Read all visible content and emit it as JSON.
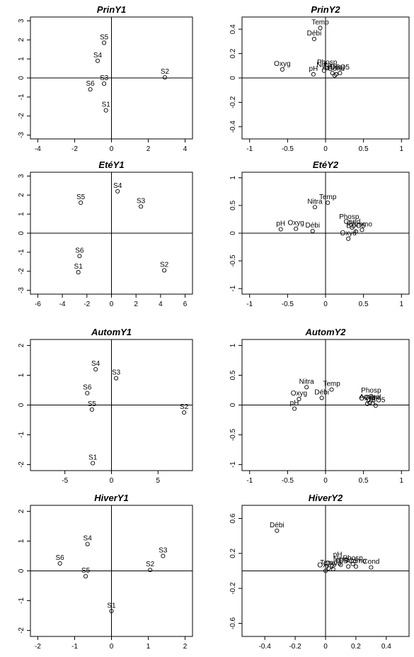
{
  "chart_data": [
    {
      "type": "scatter",
      "title": "PrinY1",
      "xlim": [
        -4.4,
        4.4
      ],
      "ylim": [
        -3.2,
        3.2
      ],
      "xticks": [
        -4,
        -2,
        0,
        2,
        4
      ],
      "yticks": [
        -3,
        -2,
        -1,
        0,
        1,
        2,
        3
      ],
      "points": [
        {
          "label": "S5",
          "x": -0.4,
          "y": 1.85
        },
        {
          "label": "S4",
          "x": -0.75,
          "y": 0.9
        },
        {
          "label": "S2",
          "x": 2.9,
          "y": 0.03
        },
        {
          "label": "S3",
          "x": -0.4,
          "y": -0.3
        },
        {
          "label": "S6",
          "x": -1.15,
          "y": -0.6
        },
        {
          "label": "S1",
          "x": -0.3,
          "y": -1.7
        }
      ]
    },
    {
      "type": "scatter",
      "title": "PrinY2",
      "xlim": [
        -1.1,
        1.1
      ],
      "ylim": [
        -0.5,
        0.5
      ],
      "xticks": [
        -1.0,
        -0.5,
        0.0,
        0.5,
        1.0
      ],
      "yticks": [
        -0.4,
        -0.2,
        0.0,
        0.2,
        0.4
      ],
      "points": [
        {
          "label": "Temp",
          "x": -0.07,
          "y": 0.41
        },
        {
          "label": "Débi",
          "x": -0.15,
          "y": 0.32
        },
        {
          "label": "Oxyg",
          "x": -0.57,
          "y": 0.07
        },
        {
          "label": "Phosp",
          "x": 0.02,
          "y": 0.08
        },
        {
          "label": "Nitra",
          "x": -0.02,
          "y": 0.06
        },
        {
          "label": "pH",
          "x": -0.16,
          "y": 0.03
        },
        {
          "label": "Ammo",
          "x": 0.09,
          "y": 0.04
        },
        {
          "label": "Cond",
          "x": 0.14,
          "y": 0.03
        },
        {
          "label": "DBO5",
          "x": 0.19,
          "y": 0.04
        },
        {
          "label": "",
          "x": 0.12,
          "y": 0.02
        }
      ]
    },
    {
      "type": "scatter",
      "title": "EtéY1",
      "xlim": [
        -6.6,
        6.6
      ],
      "ylim": [
        -3.2,
        3.2
      ],
      "xticks": [
        -6,
        -4,
        -2,
        0,
        2,
        4,
        6
      ],
      "yticks": [
        -3,
        -2,
        -1,
        0,
        1,
        2,
        3
      ],
      "points": [
        {
          "label": "S4",
          "x": 0.5,
          "y": 2.2
        },
        {
          "label": "S5",
          "x": -2.5,
          "y": 1.6
        },
        {
          "label": "S3",
          "x": 2.4,
          "y": 1.4
        },
        {
          "label": "S6",
          "x": -2.6,
          "y": -1.2
        },
        {
          "label": "S1",
          "x": -2.7,
          "y": -2.05
        },
        {
          "label": "S2",
          "x": 4.3,
          "y": -1.95
        }
      ]
    },
    {
      "type": "scatter",
      "title": "EtéY2",
      "xlim": [
        -1.1,
        1.1
      ],
      "ylim": [
        -1.1,
        1.1
      ],
      "xticks": [
        -1.0,
        -0.5,
        0.0,
        0.5,
        1.0
      ],
      "yticks": [
        -1.0,
        -0.5,
        0.0,
        0.5,
        1.0
      ],
      "points": [
        {
          "label": "Temp",
          "x": 0.03,
          "y": 0.55
        },
        {
          "label": "Nitra",
          "x": -0.14,
          "y": 0.47
        },
        {
          "label": "Phosp",
          "x": 0.31,
          "y": 0.19
        },
        {
          "label": "Cond",
          "x": 0.35,
          "y": 0.1
        },
        {
          "label": "pH",
          "x": -0.59,
          "y": 0.07
        },
        {
          "label": "Oxyg",
          "x": -0.39,
          "y": 0.08
        },
        {
          "label": "Débi",
          "x": -0.17,
          "y": 0.04
        },
        {
          "label": "Ammo",
          "x": 0.48,
          "y": 0.06
        },
        {
          "label": "BDO5",
          "x": 0.4,
          "y": 0.03
        },
        {
          "label": "Oxyd",
          "x": 0.3,
          "y": -0.1
        }
      ]
    },
    {
      "type": "scatter",
      "title": "AutomY1",
      "xlim": [
        -8.7,
        8.7
      ],
      "ylim": [
        -2.2,
        2.2
      ],
      "xticks": [
        -5,
        0,
        5
      ],
      "yticks": [
        -2,
        -1,
        0,
        1,
        2
      ],
      "points": [
        {
          "label": "S4",
          "x": -1.7,
          "y": 1.2
        },
        {
          "label": "S3",
          "x": 0.5,
          "y": 0.9
        },
        {
          "label": "S6",
          "x": -2.6,
          "y": 0.4
        },
        {
          "label": "S5",
          "x": -2.1,
          "y": -0.15
        },
        {
          "label": "S2",
          "x": 7.8,
          "y": -0.25
        },
        {
          "label": "S1",
          "x": -2.0,
          "y": -1.95
        }
      ]
    },
    {
      "type": "scatter",
      "title": "AutomY2",
      "xlim": [
        -1.1,
        1.1
      ],
      "ylim": [
        -1.1,
        1.1
      ],
      "xticks": [
        -1.0,
        -0.5,
        0.0,
        0.5,
        1.0
      ],
      "yticks": [
        -1.0,
        -0.5,
        0.0,
        0.5,
        1.0
      ],
      "points": [
        {
          "label": "Nitra",
          "x": -0.25,
          "y": 0.3
        },
        {
          "label": "Temp",
          "x": 0.08,
          "y": 0.26
        },
        {
          "label": "Phosp",
          "x": 0.6,
          "y": 0.15
        },
        {
          "label": "Oxyg",
          "x": -0.35,
          "y": 0.1
        },
        {
          "label": "Débi",
          "x": -0.05,
          "y": 0.12
        },
        {
          "label": "pH",
          "x": -0.41,
          "y": -0.06
        },
        {
          "label": "Ammo",
          "x": 0.58,
          "y": 0.04
        },
        {
          "label": "Cond",
          "x": 0.62,
          "y": 0.03
        },
        {
          "label": "DBO5",
          "x": 0.66,
          "y": -0.01
        },
        {
          "label": "Oxyd",
          "x": 0.55,
          "y": 0.02
        }
      ]
    },
    {
      "type": "scatter",
      "title": "HiverY1",
      "xlim": [
        -2.2,
        2.2
      ],
      "ylim": [
        -2.2,
        2.2
      ],
      "xticks": [
        -2,
        -1,
        0,
        1,
        2
      ],
      "yticks": [
        -2,
        -1,
        0,
        1,
        2
      ],
      "points": [
        {
          "label": "S4",
          "x": -0.65,
          "y": 0.9
        },
        {
          "label": "S3",
          "x": 1.4,
          "y": 0.5
        },
        {
          "label": "S6",
          "x": -1.4,
          "y": 0.25
        },
        {
          "label": "S2",
          "x": 1.05,
          "y": 0.03
        },
        {
          "label": "S5",
          "x": -0.7,
          "y": -0.18
        },
        {
          "label": "S1",
          "x": 0.0,
          "y": -1.35
        }
      ]
    },
    {
      "type": "scatter",
      "title": "HiverY2",
      "xlim": [
        -0.55,
        0.55
      ],
      "ylim": [
        -0.75,
        0.75
      ],
      "xticks": [
        -0.4,
        -0.2,
        0.0,
        0.2,
        0.4
      ],
      "yticks": [
        -0.6,
        -0.2,
        0.2,
        0.6
      ],
      "points": [
        {
          "label": "Débi",
          "x": -0.32,
          "y": 0.46
        },
        {
          "label": "pH",
          "x": 0.08,
          "y": 0.12
        },
        {
          "label": "Phosp",
          "x": 0.18,
          "y": 0.08
        },
        {
          "label": "Nitra",
          "x": 0.1,
          "y": 0.07
        },
        {
          "label": "Temp",
          "x": 0.02,
          "y": 0.03
        },
        {
          "label": "Oxyg",
          "x": 0.0,
          "y": 0.0
        },
        {
          "label": "Cond",
          "x": 0.3,
          "y": 0.04
        },
        {
          "label": "Ammo",
          "x": 0.2,
          "y": 0.05
        },
        {
          "label": "DBO5",
          "x": 0.15,
          "y": 0.05
        },
        {
          "label": "Oxyd",
          "x": 0.05,
          "y": 0.02
        }
      ]
    }
  ]
}
